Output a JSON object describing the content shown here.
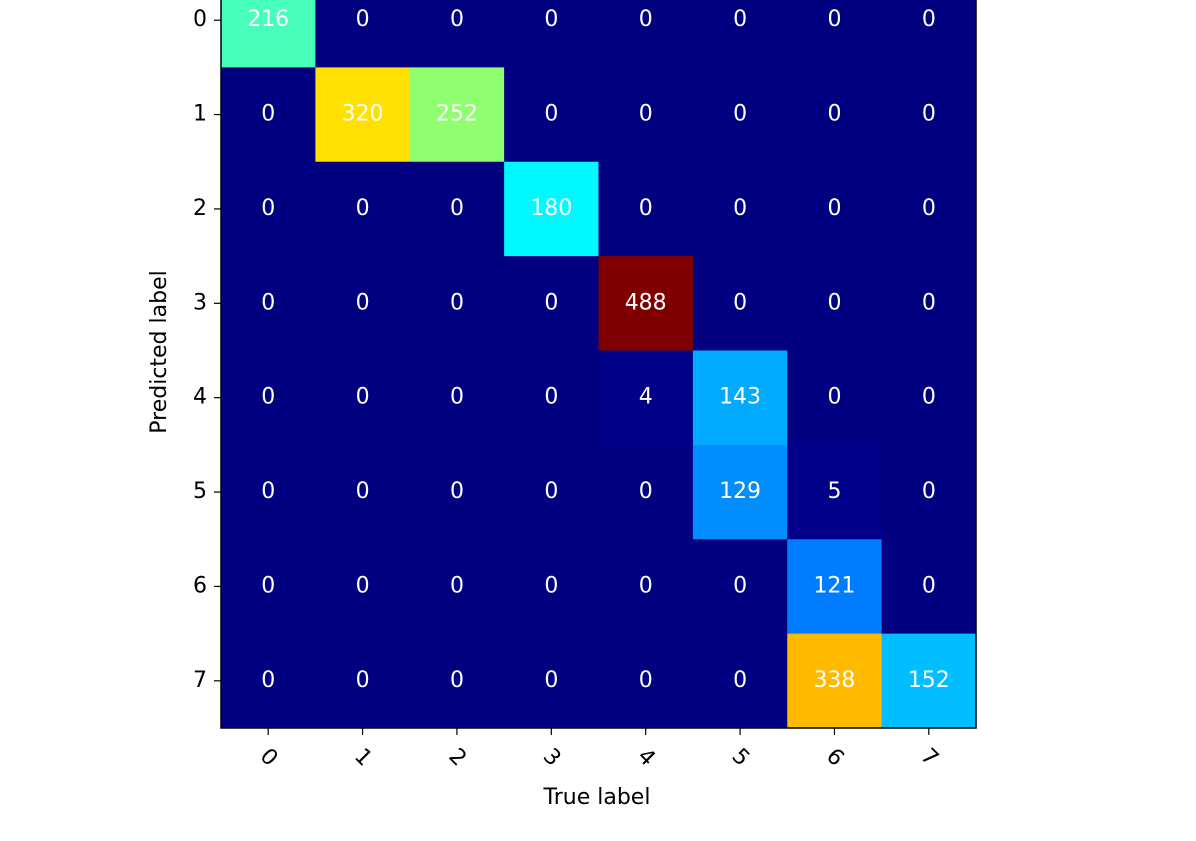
{
  "chart_data": {
    "type": "heatmap",
    "colormap": "jet",
    "x_label": "True label",
    "y_label": "Predicted label",
    "x_categories": [
      "0",
      "1",
      "2",
      "3",
      "4",
      "5",
      "6",
      "7"
    ],
    "y_categories": [
      "0",
      "1",
      "2",
      "3",
      "4",
      "5",
      "6",
      "7"
    ],
    "values": [
      [
        216,
        0,
        0,
        0,
        0,
        0,
        0,
        0
      ],
      [
        0,
        320,
        252,
        0,
        0,
        0,
        0,
        0
      ],
      [
        0,
        0,
        0,
        180,
        0,
        0,
        0,
        0
      ],
      [
        0,
        0,
        0,
        0,
        488,
        0,
        0,
        0
      ],
      [
        0,
        0,
        0,
        0,
        4,
        143,
        0,
        0
      ],
      [
        0,
        0,
        0,
        0,
        0,
        129,
        5,
        0
      ],
      [
        0,
        0,
        0,
        0,
        0,
        0,
        121,
        0
      ],
      [
        0,
        0,
        0,
        0,
        0,
        0,
        338,
        152
      ]
    ]
  }
}
